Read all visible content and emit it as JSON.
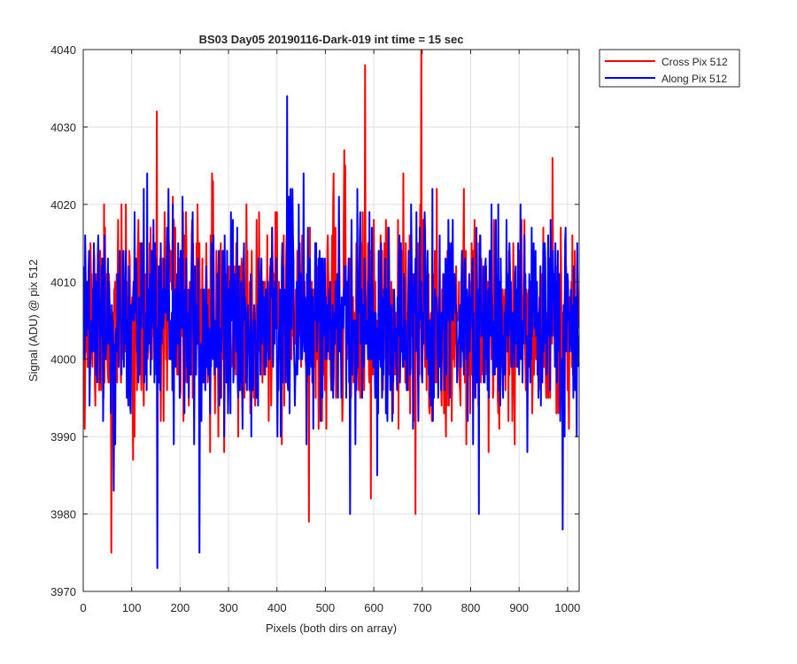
{
  "chart_data": {
    "type": "line",
    "title": "BS03 Day05 20190116-Dark-019 int time = 15 sec",
    "xlabel": "Pixels (both dirs on array)",
    "ylabel": "Signal (ADU) @ pix 512",
    "xlim": [
      0,
      1024
    ],
    "ylim": [
      3970,
      4040
    ],
    "xticks": [
      0,
      100,
      200,
      300,
      400,
      500,
      600,
      700,
      800,
      900,
      1000
    ],
    "yticks": [
      3970,
      3980,
      3990,
      4000,
      4010,
      4020,
      4030,
      4040
    ],
    "grid": true,
    "legend_position": "outside-top-right",
    "series": [
      {
        "name": "Cross Pix 512",
        "color": "#ff0000",
        "noise": {
          "mean": 4005,
          "std": 6.5,
          "min": 3975,
          "max": 4040,
          "seed": 11
        },
        "x_range": [
          0,
          1023
        ],
        "peaks": [
          [
            58,
            3975
          ],
          [
            152,
            4032
          ],
          [
            466,
            3979
          ],
          [
            582,
            4038
          ],
          [
            686,
            3980
          ],
          [
            698,
            4040
          ]
        ]
      },
      {
        "name": "Along Pix 512",
        "color": "#0000ff",
        "noise": {
          "mean": 4005,
          "std": 6.5,
          "min": 3973,
          "max": 4034,
          "seed": 29
        },
        "x_range": [
          0,
          1023
        ],
        "peaks": [
          [
            153,
            3973
          ],
          [
            240,
            3975
          ],
          [
            421,
            4034
          ],
          [
            551,
            3980
          ],
          [
            817,
            3980
          ],
          [
            990,
            3978
          ]
        ]
      }
    ]
  }
}
